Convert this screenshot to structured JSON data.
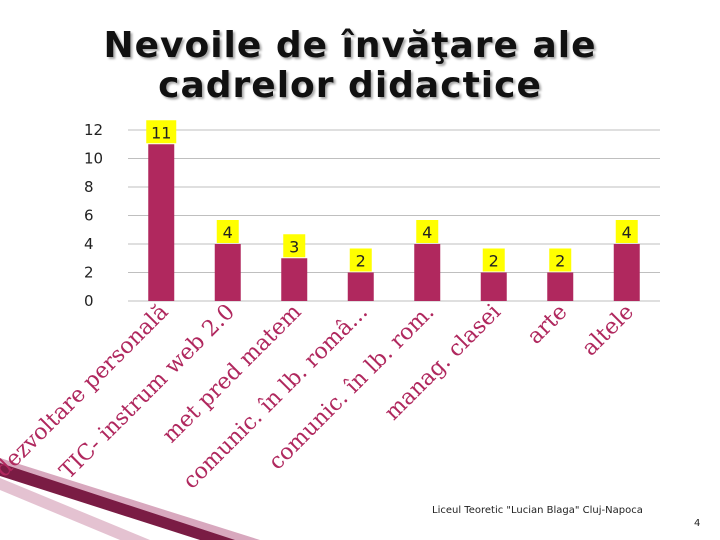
{
  "slide": {
    "title_line1": "Nevoile de învăţare ale",
    "title_line2": "cadrelor didactice",
    "footer": "Liceul Teoretic \"Lucian Blaga\" Cluj-Napoca",
    "page_number": "4"
  },
  "colors": {
    "bar": "#B0285E",
    "label_bg": "#FFFF00",
    "axis_text": "#222222",
    "category_text": "#B0285E",
    "grid": "#BFBFBF",
    "decor_dark": "#7A1C44",
    "decor_light": "#D8A8BE"
  },
  "chart_data": {
    "type": "bar",
    "title": "",
    "xlabel": "",
    "ylabel": "",
    "ylim": [
      0,
      12
    ],
    "yticks": [
      0,
      2,
      4,
      6,
      8,
      10,
      12
    ],
    "grid": true,
    "legend": "none",
    "categories": [
      "dezvoltare personală",
      "TIC- instrum web 2.0",
      "met pred matem",
      "comunic. în lb. româ...",
      "comunic. în lb. rom.",
      "manag. clasei",
      "arte",
      "altele"
    ],
    "values": [
      11,
      4,
      3,
      2,
      4,
      2,
      2,
      4
    ],
    "data_labels": [
      "11",
      "4",
      "3",
      "2",
      "4",
      "2",
      "2",
      "4"
    ]
  }
}
